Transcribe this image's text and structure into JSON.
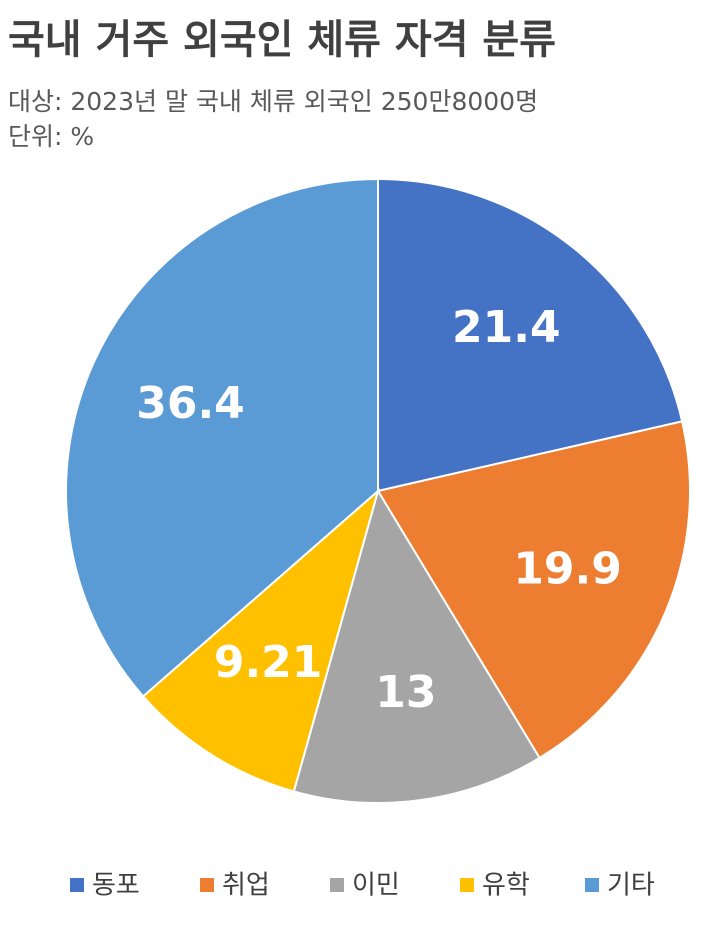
{
  "chart_data": {
    "type": "pie",
    "title": "국내 거주 외국인 체류 자격 분류",
    "subtitle": "대상: 2023년 말 국내 체류 외국인 250만8000명",
    "unit": "단위: %",
    "categories": [
      "동포",
      "취업",
      "이민",
      "유학",
      "기타"
    ],
    "values": [
      21.4,
      19.9,
      13,
      9.21,
      36.4
    ],
    "colors": [
      "#4472c4",
      "#ed7d31",
      "#a5a5a5",
      "#ffc000",
      "#5b9bd5"
    ],
    "legend": "bottom"
  }
}
